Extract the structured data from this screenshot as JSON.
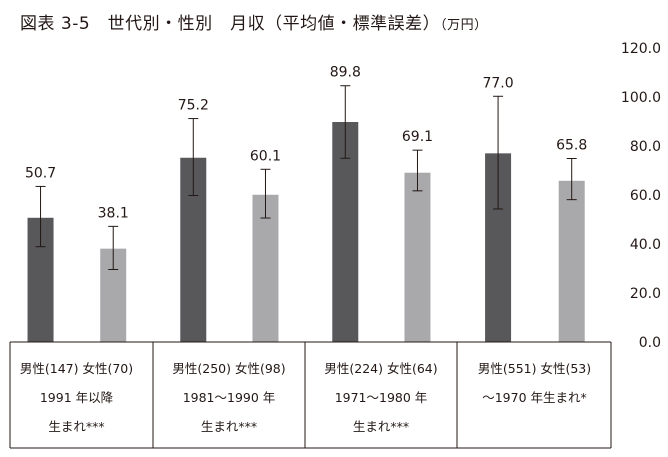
{
  "title": "図表 3-5　世代別・性別　月収（平均値・標準誤差）",
  "unit": "（万円）",
  "chart_data": {
    "type": "bar",
    "title": "図表 3-5　世代別・性別　月収（平均値・標準誤差）",
    "unit": "（万円）",
    "ylim": [
      0,
      120
    ],
    "yticks": [
      "0.0",
      "20.0",
      "40.0",
      "60.0",
      "80.0",
      "100.0",
      "120.0"
    ],
    "ytick_values": [
      0,
      20,
      40,
      60,
      80,
      100,
      120
    ],
    "grid": false,
    "colors": {
      "male": "#58585a",
      "female": "#a9a9ab"
    },
    "groups": [
      {
        "bars": [
          {
            "label": "男性(147)",
            "sex": "male",
            "value": 50.7,
            "value_label": "50.7",
            "err_low": 38.9,
            "err_high": 63.5
          },
          {
            "label": "女性(70)",
            "sex": "female",
            "value": 38.1,
            "value_label": "38.1",
            "err_low": 29.6,
            "err_high": 47.2
          }
        ],
        "period": "1991 年以降",
        "suffix": "生まれ***"
      },
      {
        "bars": [
          {
            "label": "男性(250)",
            "sex": "male",
            "value": 75.2,
            "value_label": "75.2",
            "err_low": 59.8,
            "err_high": 91.2
          },
          {
            "label": "女性(98)",
            "sex": "female",
            "value": 60.1,
            "value_label": "60.1",
            "err_low": 50.6,
            "err_high": 70.5
          }
        ],
        "period": "1981～1990 年",
        "suffix": "生まれ***"
      },
      {
        "bars": [
          {
            "label": "男性(224)",
            "sex": "male",
            "value": 89.8,
            "value_label": "89.8",
            "err_low": 75.0,
            "err_high": 104.6
          },
          {
            "label": "女性(64)",
            "sex": "female",
            "value": 69.1,
            "value_label": "69.1",
            "err_low": 61.7,
            "err_high": 78.3
          }
        ],
        "period": "1971～1980 年",
        "suffix": "生まれ***"
      },
      {
        "bars": [
          {
            "label": "男性(551)",
            "sex": "male",
            "value": 77.0,
            "value_label": "77.0",
            "err_low": 54.3,
            "err_high": 100.3
          },
          {
            "label": "女性(53)",
            "sex": "female",
            "value": 65.8,
            "value_label": "65.8",
            "err_low": 58.1,
            "err_high": 74.9
          }
        ],
        "period": "～1970 年生まれ*",
        "suffix": ""
      }
    ]
  }
}
